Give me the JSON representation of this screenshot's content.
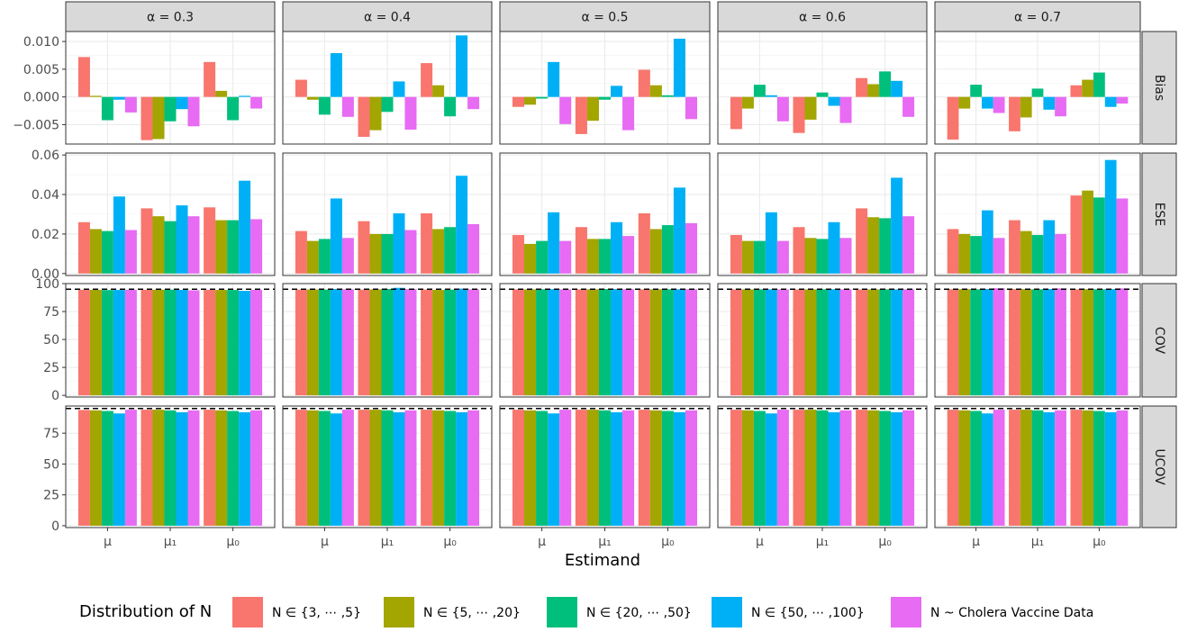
{
  "chart_data": {
    "type": "bar",
    "facet_columns": [
      "α = 0.3",
      "α = 0.4",
      "α = 0.5",
      "α = 0.6",
      "α = 0.7"
    ],
    "facet_rows": [
      "Bias",
      "ESE",
      "COV",
      "UCOV"
    ],
    "categories": [
      "μ",
      "μ₁",
      "μ₀"
    ],
    "xlabel": "Estimand",
    "legend_title": "Distribution of N",
    "legend_position": "bottom",
    "grid": true,
    "series": [
      {
        "name": "N ∈ {3, ⋯ ,5}",
        "color": "#F8766D"
      },
      {
        "name": "N ∈ {5, ⋯ ,20}",
        "color": "#A3A500"
      },
      {
        "name": "N ∈ {20, ⋯ ,50}",
        "color": "#00BF7D"
      },
      {
        "name": "N ∈ {50, ⋯ ,100}",
        "color": "#00B0F6"
      },
      {
        "name": "N ~ Cholera Vaccine Data",
        "color": "#E76BF3"
      }
    ],
    "rows": [
      {
        "name": "Bias",
        "ylim": [
          -0.0085,
          0.0118
        ],
        "ticks": [
          -0.005,
          0.0,
          0.005,
          0.01
        ],
        "tick_labels": [
          "−0.005",
          "0.000",
          "0.005",
          "0.010"
        ],
        "values": [
          [
            [
              0.0072,
              0.0002,
              -0.0042,
              -0.0005,
              -0.0028
            ],
            [
              -0.0078,
              -0.0076,
              -0.0044,
              -0.0022,
              -0.0053
            ],
            [
              0.0063,
              0.0011,
              -0.0042,
              0.0002,
              -0.0021
            ]
          ],
          [
            [
              0.0031,
              -0.0005,
              -0.0032,
              0.0079,
              -0.0036
            ],
            [
              -0.0072,
              -0.006,
              -0.0027,
              0.0028,
              -0.0059
            ],
            [
              0.0061,
              0.0021,
              -0.0035,
              0.0111,
              -0.0022
            ]
          ],
          [
            [
              -0.0018,
              -0.0014,
              -0.0003,
              0.0063,
              -0.0049
            ],
            [
              -0.0067,
              -0.0043,
              -0.0005,
              0.002,
              -0.006
            ],
            [
              0.0049,
              0.0021,
              0.0003,
              0.0105,
              -0.004
            ]
          ],
          [
            [
              -0.0058,
              -0.0021,
              0.0022,
              0.0003,
              -0.0044
            ],
            [
              -0.0065,
              -0.0041,
              0.0008,
              -0.0016,
              -0.0047
            ],
            [
              0.0034,
              0.0023,
              0.0046,
              0.0029,
              -0.0036
            ]
          ],
          [
            [
              -0.0077,
              -0.0021,
              0.0022,
              -0.0021,
              -0.0029
            ],
            [
              -0.0062,
              -0.0037,
              0.0015,
              -0.0023,
              -0.0035
            ],
            [
              0.0021,
              0.0031,
              0.0044,
              -0.0018,
              -0.0012
            ]
          ]
        ]
      },
      {
        "name": "ESE",
        "ylim": [
          -0.001,
          0.061
        ],
        "ticks": [
          0,
          0.02,
          0.04,
          0.06
        ],
        "tick_labels": [
          "0.00",
          "0.02",
          "0.04",
          "0.06"
        ],
        "values": [
          [
            [
              0.026,
              0.0225,
              0.0215,
              0.039,
              0.022
            ],
            [
              0.033,
              0.029,
              0.0265,
              0.0345,
              0.029
            ],
            [
              0.0335,
              0.027,
              0.027,
              0.047,
              0.0275
            ]
          ],
          [
            [
              0.0215,
              0.0165,
              0.0175,
              0.038,
              0.018
            ],
            [
              0.0265,
              0.02,
              0.02,
              0.0305,
              0.022
            ],
            [
              0.0305,
              0.0225,
              0.0235,
              0.0495,
              0.025
            ]
          ],
          [
            [
              0.0195,
              0.015,
              0.0165,
              0.031,
              0.0165
            ],
            [
              0.0235,
              0.0175,
              0.0175,
              0.026,
              0.019
            ],
            [
              0.0305,
              0.0225,
              0.0245,
              0.0435,
              0.0255
            ]
          ],
          [
            [
              0.0195,
              0.0165,
              0.0165,
              0.031,
              0.0165
            ],
            [
              0.0235,
              0.018,
              0.0175,
              0.026,
              0.018
            ],
            [
              0.033,
              0.0285,
              0.028,
              0.0485,
              0.029
            ]
          ],
          [
            [
              0.0225,
              0.02,
              0.019,
              0.032,
              0.018
            ],
            [
              0.027,
              0.0215,
              0.0195,
              0.027,
              0.02
            ],
            [
              0.0395,
              0.042,
              0.0385,
              0.0575,
              0.038
            ]
          ]
        ]
      },
      {
        "name": "COV",
        "ylim": [
          -1.5,
          100
        ],
        "ticks": [
          0,
          25,
          50,
          75,
          100
        ],
        "tick_labels": [
          "0",
          "25",
          "50",
          "75",
          "100"
        ],
        "reference_line": 95,
        "values": [
          [
            [
              94.5,
              94.4,
              94.2,
              94.3,
              94.4
            ],
            [
              94.4,
              94.5,
              94.6,
              94.4,
              94.0
            ],
            [
              94.4,
              94.3,
              94.3,
              93.5,
              94.4
            ]
          ],
          [
            [
              94.6,
              94.7,
              94.6,
              95.2,
              94.8
            ],
            [
              94.6,
              94.8,
              95.2,
              96.2,
              95.0
            ],
            [
              94.6,
              94.3,
              94.6,
              95.5,
              94.8
            ]
          ],
          [
            [
              94.8,
              94.8,
              94.9,
              95.0,
              94.8
            ],
            [
              94.8,
              94.9,
              95.1,
              95.1,
              94.9
            ],
            [
              94.8,
              94.9,
              94.9,
              94.9,
              94.9
            ]
          ],
          [
            [
              94.7,
              94.8,
              94.9,
              94.8,
              94.8
            ],
            [
              94.7,
              94.8,
              94.9,
              94.9,
              94.8
            ],
            [
              94.7,
              94.8,
              94.9,
              94.8,
              94.8
            ]
          ],
          [
            [
              94.9,
              95.0,
              94.9,
              95.2,
              95.8
            ],
            [
              95.0,
              95.0,
              94.9,
              95.1,
              95.7
            ],
            [
              94.9,
              95.0,
              94.9,
              95.0,
              95.7
            ]
          ]
        ]
      },
      {
        "name": "UCOV",
        "ylim": [
          -1.5,
          97
        ],
        "ticks": [
          0,
          25,
          50,
          75
        ],
        "tick_labels": [
          "0",
          "25",
          "50",
          "75"
        ],
        "reference_line": 95,
        "values": [
          [
            [
              93.8,
              93.5,
              93.0,
              91.0,
              94.0
            ],
            [
              94.0,
              94.0,
              93.5,
              92.0,
              93.5
            ],
            [
              94.0,
              93.5,
              93.0,
              92.0,
              93.5
            ]
          ],
          [
            [
              94.0,
              93.5,
              93.0,
              91.0,
              94.0
            ],
            [
              94.0,
              94.0,
              93.5,
              92.0,
              93.5
            ],
            [
              94.0,
              93.5,
              93.0,
              92.0,
              93.5
            ]
          ],
          [
            [
              94.0,
              93.5,
              93.0,
              91.0,
              94.0
            ],
            [
              94.0,
              94.0,
              93.5,
              92.0,
              93.5
            ],
            [
              94.0,
              93.5,
              93.0,
              92.0,
              93.5
            ]
          ],
          [
            [
              94.0,
              93.5,
              93.0,
              91.0,
              94.0
            ],
            [
              94.0,
              94.0,
              93.5,
              92.0,
              93.5
            ],
            [
              94.0,
              93.5,
              93.0,
              92.0,
              93.5
            ]
          ],
          [
            [
              94.0,
              93.5,
              93.0,
              91.0,
              94.0
            ],
            [
              94.0,
              94.0,
              93.5,
              92.0,
              93.5
            ],
            [
              94.0,
              93.5,
              93.0,
              92.0,
              93.5
            ]
          ]
        ]
      }
    ]
  }
}
